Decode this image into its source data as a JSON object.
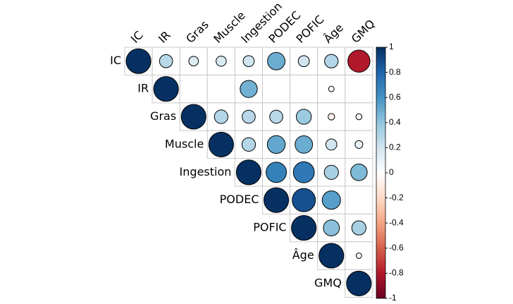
{
  "chart_data": {
    "type": "heatmap",
    "subtype": "correlation-matrix-upper-circles",
    "variables": [
      "IC",
      "IR",
      "Gras",
      "Muscle",
      "Ingestion",
      "PODEC",
      "POFIC",
      "Âge",
      "GMQ"
    ],
    "matrix": [
      [
        1.0,
        0.28,
        0.15,
        0.17,
        0.2,
        0.5,
        0.2,
        0.3,
        -0.8
      ],
      [
        null,
        1.0,
        null,
        null,
        0.48,
        null,
        null,
        0.05,
        0.0
      ],
      [
        null,
        null,
        1.0,
        0.3,
        0.28,
        0.28,
        0.37,
        -0.07,
        0.06
      ],
      [
        null,
        null,
        null,
        1.0,
        0.3,
        0.52,
        0.5,
        0.2,
        0.1
      ],
      [
        null,
        null,
        null,
        null,
        1.0,
        0.68,
        0.72,
        0.33,
        0.45
      ],
      [
        null,
        null,
        null,
        null,
        null,
        1.0,
        0.88,
        0.55,
        0.0
      ],
      [
        null,
        null,
        null,
        null,
        null,
        null,
        1.0,
        0.42,
        0.33
      ],
      [
        null,
        null,
        null,
        null,
        null,
        null,
        null,
        1.0,
        -0.05
      ],
      [
        null,
        null,
        null,
        null,
        null,
        null,
        null,
        null,
        1.0
      ]
    ],
    "color_scale": {
      "min": -1,
      "max": 1,
      "ticks": [
        "1",
        "0.8",
        "0.6",
        "0.4",
        "0.2",
        "0",
        "-0.2",
        "-0.4",
        "-0.6",
        "-0.8",
        "-1"
      ],
      "stops": [
        "#67001F",
        "#B2182B",
        "#D6604D",
        "#F4A582",
        "#FDDBC7",
        "#FFFFFF",
        "#D1E5F0",
        "#92C5DE",
        "#4393C3",
        "#2166AC",
        "#053061"
      ]
    },
    "colorbar_position": "right"
  }
}
